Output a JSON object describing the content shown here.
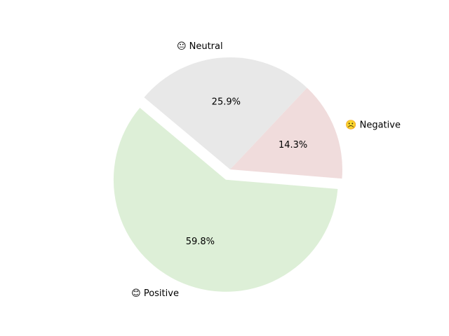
{
  "chart_data": {
    "type": "pie",
    "title": "",
    "start_angle_deg": 140,
    "direction": "counterclockwise",
    "slices": [
      {
        "label": "😊 Positive",
        "value": 59.8,
        "pct_label": "59.8%",
        "color": "#ddefd7",
        "explode": 0.1
      },
      {
        "label": "☹️ Negative",
        "value": 14.3,
        "pct_label": "14.3%",
        "color": "#f0dcdc",
        "explode": 0.0
      },
      {
        "label": "😐 Neutral",
        "value": 25.9,
        "pct_label": "25.9%",
        "color": "#e8e8e8",
        "explode": 0.0
      }
    ]
  }
}
